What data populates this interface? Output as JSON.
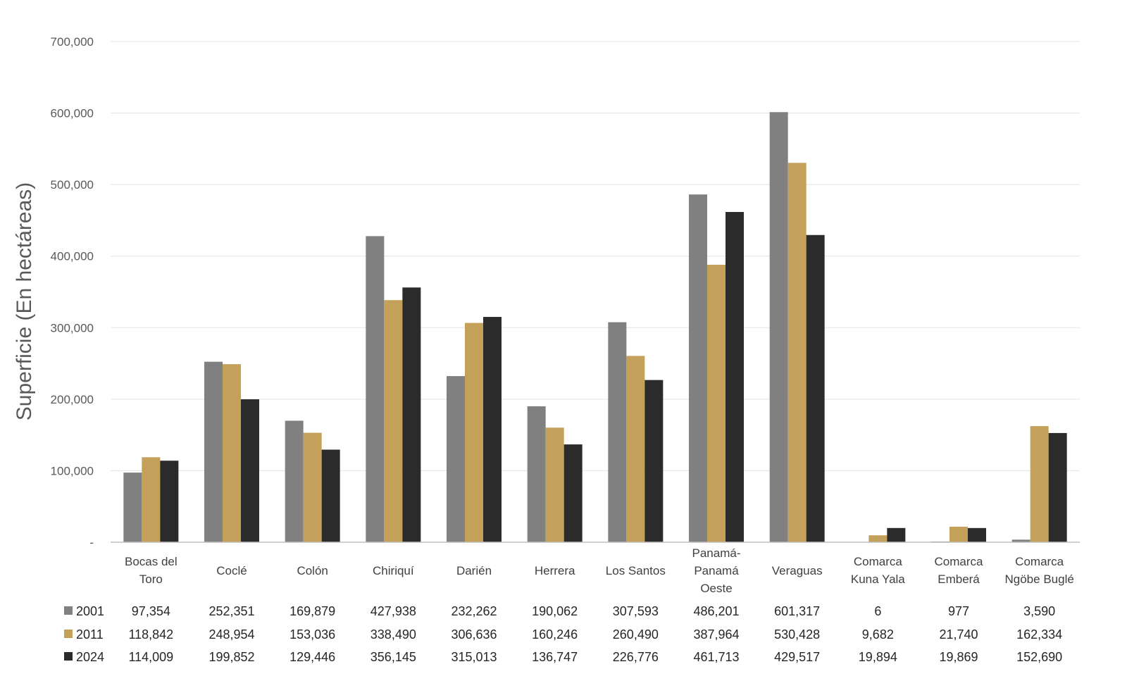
{
  "chart_data": {
    "type": "bar",
    "ylabel": "Superficie (En hectáreas)",
    "xlabel": "",
    "ylim": [
      0,
      700000
    ],
    "yticks": [
      0,
      100000,
      200000,
      300000,
      400000,
      500000,
      600000,
      700000
    ],
    "ytick_labels": [
      "-",
      "100,000",
      "200,000",
      "300,000",
      "400,000",
      "500,000",
      "600,000",
      "700,000"
    ],
    "grid": true,
    "legend": "data-table-left",
    "categories": [
      [
        "Bocas del",
        "Toro"
      ],
      [
        "Coclé"
      ],
      [
        "Colón"
      ],
      [
        "Chiriquí"
      ],
      [
        "Darién"
      ],
      [
        "Herrera"
      ],
      [
        "Los Santos"
      ],
      [
        "Panamá-",
        "Panamá",
        "Oeste"
      ],
      [
        "Veraguas"
      ],
      [
        "Comarca",
        "Kuna Yala"
      ],
      [
        "Comarca",
        "Emberá"
      ],
      [
        "Comarca",
        "Ngöbe Buglé"
      ]
    ],
    "series": [
      {
        "name": "2001",
        "color": "#808080",
        "values": [
          97354,
          252351,
          169879,
          427938,
          232262,
          190062,
          307593,
          486201,
          601317,
          6,
          977,
          3590
        ],
        "labels": [
          "97,354",
          "252,351",
          "169,879",
          "427,938",
          "232,262",
          "190,062",
          "307,593",
          "486,201",
          "601,317",
          "6",
          "977",
          "3,590"
        ]
      },
      {
        "name": "2011",
        "color": "#C4A15A",
        "values": [
          118842,
          248954,
          153036,
          338490,
          306636,
          160246,
          260490,
          387964,
          530428,
          9682,
          21740,
          162334
        ],
        "labels": [
          "118,842",
          "248,954",
          "153,036",
          "338,490",
          "306,636",
          "160,246",
          "260,490",
          "387,964",
          "530,428",
          "9,682",
          "21,740",
          "162,334"
        ]
      },
      {
        "name": "2024",
        "color": "#2B2B2B",
        "values": [
          114009,
          199852,
          129446,
          356145,
          315013,
          136747,
          226776,
          461713,
          429517,
          19894,
          19869,
          152690
        ],
        "labels": [
          "114,009",
          "199,852",
          "129,446",
          "356,145",
          "315,013",
          "136,747",
          "226,776",
          "461,713",
          "429,517",
          "19,894",
          "19,869",
          "152,690"
        ]
      }
    ]
  }
}
